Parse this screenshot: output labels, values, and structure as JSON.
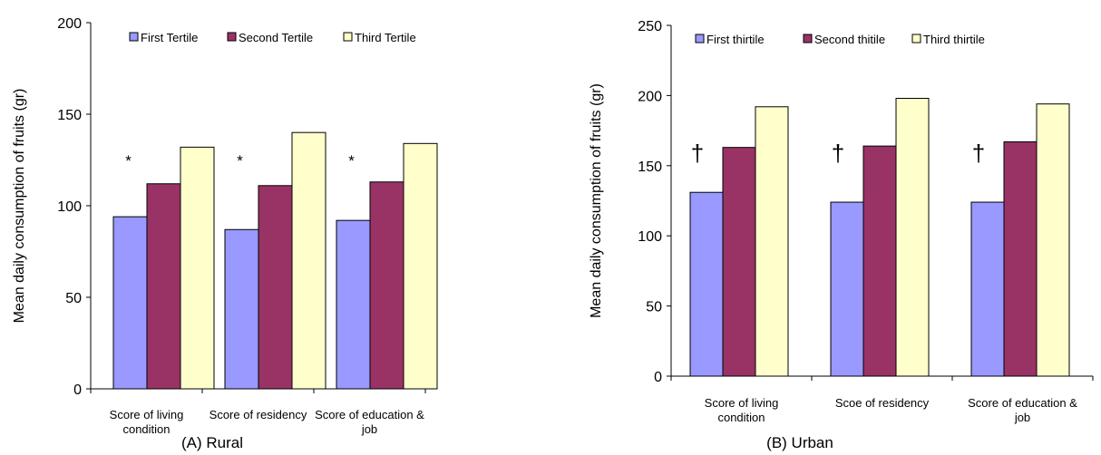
{
  "chart_data": [
    {
      "type": "bar",
      "ylabel": "Mean daily consumption of fruits (gr)",
      "caption": "(A) Rural",
      "ylim": [
        0,
        200
      ],
      "yticks": [
        0,
        50,
        100,
        150,
        200
      ],
      "categories": [
        "Score of living condition",
        "Score of residency",
        "Score of education & job"
      ],
      "category_lines": [
        [
          "Score of living",
          "condition"
        ],
        [
          "Score of residency"
        ],
        [
          "Score of education &",
          "job"
        ]
      ],
      "series": [
        {
          "name": "First Tertile",
          "color": "#9999ff",
          "values": [
            94,
            87,
            92
          ]
        },
        {
          "name": "Second Tertile",
          "color": "#993366",
          "values": [
            112,
            111,
            113
          ]
        },
        {
          "name": "Third Tertile",
          "color": "#ffffcc",
          "values": [
            132,
            140,
            134
          ]
        }
      ],
      "annotations": [
        {
          "text": "*",
          "category": 0
        },
        {
          "text": "*",
          "category": 1
        },
        {
          "text": "*",
          "category": 2
        }
      ],
      "legend": "top",
      "grid": false
    },
    {
      "type": "bar",
      "ylabel": "Mean daily consumption of fruits (gr)",
      "caption": "(B) Urban",
      "ylim": [
        0,
        250
      ],
      "yticks": [
        0,
        50,
        100,
        150,
        200,
        250
      ],
      "categories": [
        "Score of living condition",
        "Scoe of residency",
        "Score of education & job"
      ],
      "category_lines": [
        [
          "Score of living",
          "condition"
        ],
        [
          "Scoe of residency"
        ],
        [
          "Score of education &",
          "job"
        ]
      ],
      "series": [
        {
          "name": "First thirtile",
          "color": "#9999ff",
          "values": [
            131,
            124,
            124
          ]
        },
        {
          "name": "Second thitile",
          "color": "#993366",
          "values": [
            163,
            164,
            167
          ]
        },
        {
          "name": "Third thirtile",
          "color": "#ffffcc",
          "values": [
            192,
            198,
            194
          ]
        }
      ],
      "annotations": [
        {
          "text": "†",
          "category": 0
        },
        {
          "text": "†",
          "category": 1
        },
        {
          "text": "†",
          "category": 2
        }
      ],
      "legend": "top",
      "grid": false
    }
  ]
}
